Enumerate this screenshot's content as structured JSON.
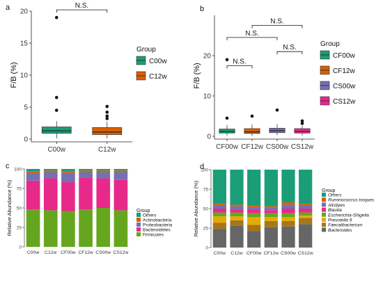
{
  "chart_data": [
    {
      "panel": "a",
      "type": "boxplot",
      "ylabel": "F/B (%)",
      "xlabel": "",
      "ylim": [
        0,
        20
      ],
      "yticks": [
        0,
        5,
        10,
        15,
        20
      ],
      "categories": [
        "C00w",
        "C12w"
      ],
      "legend": {
        "title": "Group",
        "placement": "right",
        "entries": [
          {
            "name": "C00w",
            "color": "#1b9e77"
          },
          {
            "name": "C12w",
            "color": "#d95f02"
          }
        ]
      },
      "boxes": [
        {
          "name": "C00w",
          "color": "#1b9e77",
          "q1": 0.9,
          "median": 1.3,
          "q3": 1.9,
          "whisker_low": 0.1,
          "whisker_high": 2.8,
          "outliers": [
            4.5,
            6.5,
            19.0
          ]
        },
        {
          "name": "C12w",
          "color": "#d95f02",
          "q1": 0.7,
          "median": 1.1,
          "q3": 1.8,
          "whisker_low": 0.1,
          "whisker_high": 2.7,
          "outliers": [
            3.2,
            3.6,
            4.2,
            5.1
          ]
        }
      ],
      "annotations": [
        {
          "label": "N.S.",
          "from": "C00w",
          "to": "C12w",
          "y": 20.2
        }
      ]
    },
    {
      "panel": "b",
      "type": "boxplot",
      "ylabel": "F/B (%)",
      "xlabel": "",
      "ylim": [
        0,
        30
      ],
      "yticks": [
        0,
        10,
        20
      ],
      "categories": [
        "CF00w",
        "CF12w",
        "CS00w",
        "CS12w"
      ],
      "legend": {
        "title": "Group",
        "placement": "right",
        "entries": [
          {
            "name": "CF00w",
            "color": "#1b9e77"
          },
          {
            "name": "CF12w",
            "color": "#d95f02"
          },
          {
            "name": "CS00w",
            "color": "#7570b3"
          },
          {
            "name": "CS12w",
            "color": "#e7298a"
          }
        ]
      },
      "boxes": [
        {
          "name": "CF00w",
          "color": "#1b9e77",
          "q1": 0.8,
          "median": 1.2,
          "q3": 1.8,
          "whisker_low": 0.2,
          "whisker_high": 2.8,
          "outliers": [
            4.5,
            19.0
          ]
        },
        {
          "name": "CF12w",
          "color": "#d95f02",
          "q1": 0.7,
          "median": 1.1,
          "q3": 1.9,
          "whisker_low": 0.1,
          "whisker_high": 2.9,
          "outliers": [
            5.0
          ]
        },
        {
          "name": "CS00w",
          "color": "#7570b3",
          "q1": 0.9,
          "median": 1.4,
          "q3": 2.0,
          "whisker_low": 0.3,
          "whisker_high": 3.0,
          "outliers": [
            6.5
          ]
        },
        {
          "name": "CS12w",
          "color": "#e7298a",
          "q1": 0.8,
          "median": 1.2,
          "q3": 1.9,
          "whisker_low": 0.2,
          "whisker_high": 2.6,
          "outliers": [
            3.2,
            3.8
          ]
        }
      ],
      "annotations": [
        {
          "label": "N.S.",
          "from": "CF00w",
          "to": "CF12w",
          "y": 17.5
        },
        {
          "label": "N.S.",
          "from": "CS00w",
          "to": "CS12w",
          "y": 21.0
        },
        {
          "label": "N.S.",
          "from": "CF00w",
          "to": "CS00w",
          "y": 24.5
        },
        {
          "label": "N.S.",
          "from": "CF12w",
          "to": "CS12w",
          "y": 27.5
        }
      ]
    },
    {
      "panel": "c",
      "type": "stacked_bar",
      "ylabel": "Relative Abundance (%)",
      "xlabel": "",
      "ylim": [
        0,
        100
      ],
      "yticks": [
        0,
        25,
        50,
        75,
        100
      ],
      "categories": [
        "C00w",
        "C12w",
        "CF00w",
        "CF12w",
        "CS00w",
        "CS12w"
      ],
      "legend": {
        "title": "Group",
        "placement": "right"
      },
      "series": [
        {
          "name": "Firmicutes",
          "color": "#66a61e",
          "values": [
            48,
            47,
            46,
            48,
            50,
            47
          ]
        },
        {
          "name": "Bacteroidetes",
          "color": "#e7298a",
          "values": [
            37,
            41,
            37,
            41,
            38,
            39
          ]
        },
        {
          "name": "Proteobacteria",
          "color": "#7570b3",
          "values": [
            10,
            8,
            12,
            7,
            8,
            10
          ]
        },
        {
          "name": "Actinobacteria",
          "color": "#d95f02",
          "values": [
            2,
            2,
            2,
            2,
            2,
            2
          ]
        },
        {
          "name": "Others",
          "color": "#1b9e77",
          "values": [
            3,
            2,
            3,
            2,
            2,
            2
          ]
        }
      ]
    },
    {
      "panel": "d",
      "type": "stacked_bar",
      "ylabel": "Relative Abundance (%)",
      "xlabel": "",
      "ylim": [
        0,
        100
      ],
      "yticks": [
        0,
        25,
        50,
        75,
        100
      ],
      "categories": [
        "C00w",
        "C12w",
        "CF00w",
        "CF12w",
        "CS00w",
        "CS12w"
      ],
      "legend": {
        "title": "Group",
        "placement": "right"
      },
      "series": [
        {
          "name": "Bacteroides",
          "color": "#666666",
          "values": [
            24,
            28,
            21,
            26,
            27,
            30
          ]
        },
        {
          "name": "Faecalibacterium",
          "color": "#a6761d",
          "values": [
            8,
            7,
            8,
            8,
            7,
            8
          ]
        },
        {
          "name": "Prevotella 9",
          "color": "#e6ab02",
          "values": [
            8,
            5,
            10,
            5,
            5,
            3
          ]
        },
        {
          "name": "Escherichia-Shigella",
          "color": "#66a61e",
          "values": [
            5,
            5,
            5,
            5,
            5,
            4
          ]
        },
        {
          "name": "Blautia",
          "color": "#e7298a",
          "values": [
            5,
            4,
            5,
            4,
            6,
            5
          ]
        },
        {
          "name": "Alistipes",
          "color": "#7570b3",
          "values": [
            4,
            4,
            3,
            3,
            5,
            4
          ]
        },
        {
          "name": "Ruminococcus torques",
          "color": "#d95f02",
          "values": [
            2,
            2,
            2,
            2,
            3,
            2
          ]
        },
        {
          "name": "Others",
          "color": "#1b9e77",
          "values": [
            44,
            45,
            46,
            47,
            42,
            44
          ]
        }
      ]
    }
  ],
  "panel_labels": [
    "a",
    "b",
    "c",
    "d"
  ]
}
